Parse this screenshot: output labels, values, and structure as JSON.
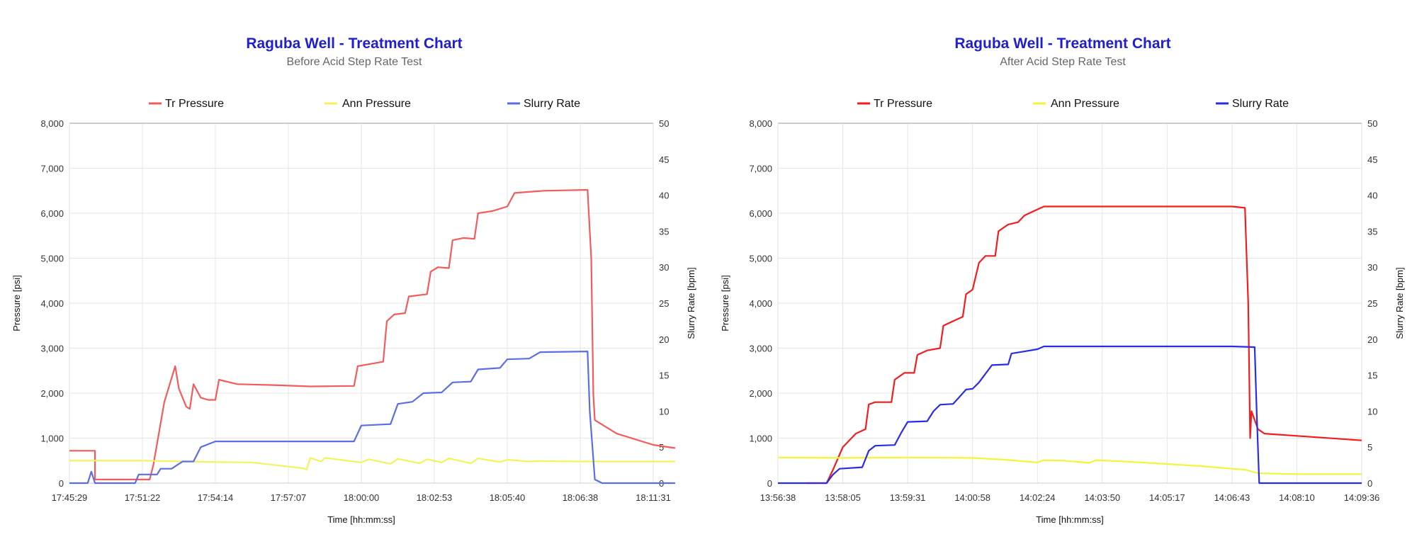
{
  "chart_data": [
    {
      "type": "line",
      "title": "Raguba Well - Treatment Chart",
      "subtitle": "Before Acid Step Rate Test",
      "xlabel": "Time [hh:mm:ss]",
      "ylabel": "Pressure [psi]",
      "y2label": "Slurry Rate [bpm]",
      "x_ticks": [
        "17:45:29",
        "17:51:22",
        "17:54:14",
        "17:57:07",
        "18:00:00",
        "18:02:53",
        "18:05:40",
        "18:06:38",
        "18:11:31"
      ],
      "y_ticks": [
        "0",
        "1,000",
        "2,000",
        "3,000",
        "4,000",
        "5,000",
        "6,000",
        "7,000",
        "8,000"
      ],
      "y2_ticks": [
        "0",
        "5",
        "10",
        "15",
        "20",
        "25",
        "30",
        "35",
        "40",
        "45",
        "50"
      ],
      "ylim": [
        0,
        8000
      ],
      "y2lim": [
        0,
        50
      ],
      "grid": true,
      "legend": "top",
      "series": [
        {
          "name": "Tr Pressure",
          "axis": "left",
          "color": "#f25c5c",
          "points": [
            [
              0,
              720
            ],
            [
              0.35,
              720
            ],
            [
              0.35,
              80
            ],
            [
              1.1,
              80
            ],
            [
              1.15,
              400
            ],
            [
              1.3,
              1800
            ],
            [
              1.45,
              2600
            ],
            [
              1.5,
              2100
            ],
            [
              1.6,
              1700
            ],
            [
              1.65,
              1650
            ],
            [
              1.7,
              2200
            ],
            [
              1.8,
              1900
            ],
            [
              1.9,
              1850
            ],
            [
              2.0,
              1850
            ],
            [
              2.05,
              2300
            ],
            [
              2.3,
              2200
            ],
            [
              2.8,
              2180
            ],
            [
              3.3,
              2150
            ],
            [
              3.9,
              2160
            ],
            [
              3.95,
              2600
            ],
            [
              4.3,
              2700
            ],
            [
              4.35,
              3600
            ],
            [
              4.45,
              3750
            ],
            [
              4.6,
              3780
            ],
            [
              4.65,
              4150
            ],
            [
              4.9,
              4200
            ],
            [
              4.95,
              4700
            ],
            [
              5.05,
              4800
            ],
            [
              5.2,
              4780
            ],
            [
              5.25,
              5400
            ],
            [
              5.4,
              5450
            ],
            [
              5.55,
              5430
            ],
            [
              5.6,
              6000
            ],
            [
              5.8,
              6050
            ],
            [
              6.0,
              6150
            ],
            [
              6.1,
              6450
            ],
            [
              6.5,
              6500
            ],
            [
              7.1,
              6520
            ],
            [
              7.15,
              5000
            ],
            [
              7.18,
              1950
            ],
            [
              7.2,
              1400
            ],
            [
              7.5,
              1100
            ],
            [
              8.0,
              850
            ],
            [
              8.3,
              780
            ]
          ]
        },
        {
          "name": "Ann Pressure",
          "axis": "left",
          "color": "#f4f45a",
          "points": [
            [
              0,
              500
            ],
            [
              1.0,
              500
            ],
            [
              2.0,
              470
            ],
            [
              2.5,
              460
            ],
            [
              3.2,
              330
            ],
            [
              3.25,
              300
            ],
            [
              3.3,
              560
            ],
            [
              3.45,
              480
            ],
            [
              3.5,
              560
            ],
            [
              4.0,
              460
            ],
            [
              4.1,
              530
            ],
            [
              4.4,
              430
            ],
            [
              4.5,
              540
            ],
            [
              4.8,
              440
            ],
            [
              4.9,
              530
            ],
            [
              5.1,
              460
            ],
            [
              5.2,
              550
            ],
            [
              5.5,
              440
            ],
            [
              5.6,
              550
            ],
            [
              5.9,
              470
            ],
            [
              6.0,
              520
            ],
            [
              6.3,
              480
            ],
            [
              6.4,
              490
            ],
            [
              7.0,
              480
            ],
            [
              8.3,
              480
            ]
          ]
        },
        {
          "name": "Slurry Rate",
          "axis": "right",
          "color": "#5b6ee6",
          "points": [
            [
              0,
              0
            ],
            [
              0.25,
              0
            ],
            [
              0.3,
              1.6
            ],
            [
              0.35,
              0
            ],
            [
              0.9,
              0
            ],
            [
              0.95,
              1.2
            ],
            [
              1.2,
              1.2
            ],
            [
              1.25,
              2.0
            ],
            [
              1.4,
              2.0
            ],
            [
              1.55,
              3.0
            ],
            [
              1.7,
              3.0
            ],
            [
              1.8,
              5.0
            ],
            [
              2.0,
              5.8
            ],
            [
              2.5,
              5.8
            ],
            [
              3.9,
              5.8
            ],
            [
              4.0,
              8.0
            ],
            [
              4.4,
              8.2
            ],
            [
              4.5,
              11.0
            ],
            [
              4.7,
              11.3
            ],
            [
              4.85,
              12.5
            ],
            [
              5.1,
              12.6
            ],
            [
              5.25,
              14.0
            ],
            [
              5.5,
              14.1
            ],
            [
              5.6,
              15.8
            ],
            [
              5.9,
              16.0
            ],
            [
              6.0,
              17.2
            ],
            [
              6.3,
              17.3
            ],
            [
              6.45,
              18.2
            ],
            [
              7.1,
              18.3
            ],
            [
              7.13,
              10.0
            ],
            [
              7.2,
              0.5
            ],
            [
              7.3,
              0
            ],
            [
              8.3,
              0
            ]
          ]
        }
      ]
    },
    {
      "type": "line",
      "title": "Raguba Well - Treatment Chart",
      "subtitle": "After Acid Step Rate Test",
      "xlabel": "Time [hh:mm:ss]",
      "ylabel": "Pressure [psi]",
      "y2label": "Slurry Rate [bpm]",
      "x_ticks": [
        "13:56:38",
        "13:58:05",
        "13:59:31",
        "14:00:58",
        "14:02:24",
        "14:03:50",
        "14:05:17",
        "14:06:43",
        "14:08:10",
        "14:09:36"
      ],
      "y_ticks": [
        "0",
        "1,000",
        "2,000",
        "3,000",
        "4,000",
        "5,000",
        "6,000",
        "7,000",
        "8,000"
      ],
      "y2_ticks": [
        "0",
        "5",
        "10",
        "15",
        "20",
        "25",
        "30",
        "35",
        "40",
        "45",
        "50"
      ],
      "ylim": [
        0,
        8000
      ],
      "y2lim": [
        0,
        50
      ],
      "grid": true,
      "legend": "top",
      "series": [
        {
          "name": "Tr Pressure",
          "axis": "left",
          "color": "#f21e1e",
          "points": [
            [
              0.45,
              0
            ],
            [
              0.75,
              0
            ],
            [
              0.85,
              300
            ],
            [
              1.0,
              800
            ],
            [
              1.2,
              1100
            ],
            [
              1.35,
              1200
            ],
            [
              1.4,
              1750
            ],
            [
              1.5,
              1800
            ],
            [
              1.75,
              1800
            ],
            [
              1.8,
              2300
            ],
            [
              1.95,
              2450
            ],
            [
              2.1,
              2450
            ],
            [
              2.15,
              2850
            ],
            [
              2.3,
              2950
            ],
            [
              2.5,
              3000
            ],
            [
              2.55,
              3500
            ],
            [
              2.7,
              3600
            ],
            [
              2.85,
              3700
            ],
            [
              2.9,
              4200
            ],
            [
              3.0,
              4300
            ],
            [
              3.1,
              4900
            ],
            [
              3.2,
              5050
            ],
            [
              3.35,
              5050
            ],
            [
              3.4,
              5600
            ],
            [
              3.55,
              5750
            ],
            [
              3.7,
              5800
            ],
            [
              3.8,
              5950
            ],
            [
              3.95,
              6050
            ],
            [
              4.1,
              6150
            ],
            [
              4.5,
              6150
            ],
            [
              5.5,
              6150
            ],
            [
              6.5,
              6150
            ],
            [
              7.0,
              6150
            ],
            [
              7.2,
              6120
            ],
            [
              7.25,
              4000
            ],
            [
              7.28,
              1000
            ],
            [
              7.3,
              1600
            ],
            [
              7.4,
              1200
            ],
            [
              7.5,
              1100
            ],
            [
              8.0,
              1050
            ],
            [
              9.0,
              950
            ]
          ]
        },
        {
          "name": "Ann Pressure",
          "axis": "left",
          "color": "#f4f439",
          "points": [
            [
              0,
              570
            ],
            [
              1.0,
              560
            ],
            [
              2.0,
              570
            ],
            [
              3.0,
              560
            ],
            [
              3.5,
              520
            ],
            [
              4.0,
              460
            ],
            [
              4.1,
              510
            ],
            [
              4.4,
              500
            ],
            [
              4.8,
              450
            ],
            [
              4.9,
              510
            ],
            [
              5.5,
              470
            ],
            [
              6.5,
              380
            ],
            [
              7.0,
              320
            ],
            [
              7.2,
              300
            ],
            [
              7.4,
              220
            ],
            [
              8.0,
              200
            ],
            [
              9.0,
              200
            ]
          ]
        },
        {
          "name": "Slurry Rate",
          "axis": "right",
          "color": "#2c2ce6",
          "points": [
            [
              0,
              0
            ],
            [
              0.75,
              0
            ],
            [
              0.8,
              0.6
            ],
            [
              0.85,
              1.2
            ],
            [
              0.95,
              2.0
            ],
            [
              1.3,
              2.2
            ],
            [
              1.4,
              4.5
            ],
            [
              1.5,
              5.2
            ],
            [
              1.8,
              5.3
            ],
            [
              1.9,
              7.0
            ],
            [
              2.0,
              8.5
            ],
            [
              2.3,
              8.6
            ],
            [
              2.4,
              10.0
            ],
            [
              2.5,
              10.9
            ],
            [
              2.7,
              11.0
            ],
            [
              2.8,
              12.0
            ],
            [
              2.9,
              13.0
            ],
            [
              3.0,
              13.1
            ],
            [
              3.1,
              14.0
            ],
            [
              3.3,
              16.4
            ],
            [
              3.55,
              16.5
            ],
            [
              3.6,
              18.0
            ],
            [
              3.8,
              18.3
            ],
            [
              4.0,
              18.6
            ],
            [
              4.1,
              19.0
            ],
            [
              5.0,
              19.0
            ],
            [
              6.0,
              19.0
            ],
            [
              7.0,
              19.0
            ],
            [
              7.35,
              18.9
            ],
            [
              7.38,
              10.0
            ],
            [
              7.42,
              0
            ],
            [
              9.0,
              0
            ]
          ]
        }
      ]
    }
  ]
}
